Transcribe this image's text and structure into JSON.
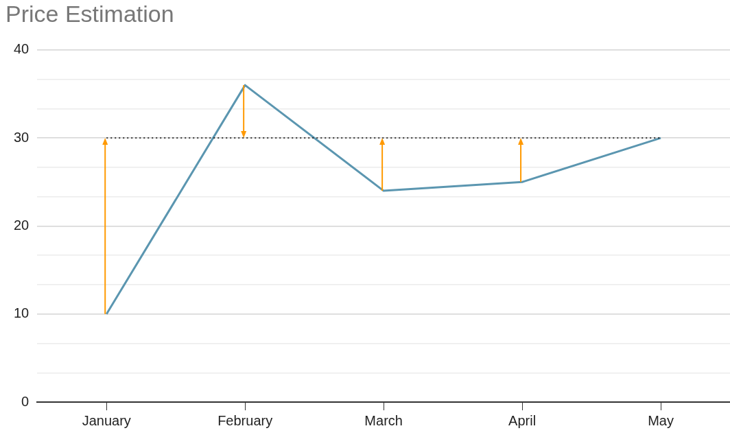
{
  "chart_data": {
    "type": "line",
    "title": "Price Estimation",
    "categories": [
      "January",
      "February",
      "March",
      "April",
      "May"
    ],
    "series": [
      {
        "color": "#5b96b0",
        "values": [
          10,
          36,
          24,
          25,
          30
        ]
      }
    ],
    "ylim": [
      0,
      40
    ],
    "yticks": [
      0,
      {
        "value": 3.33,
        "label": null
      },
      {
        "value": 6.67,
        "label": null
      },
      10,
      {
        "value": 13.33,
        "label": null
      },
      {
        "value": 16.67,
        "label": null
      },
      20,
      {
        "value": 23.33,
        "label": null
      },
      {
        "value": 26.67,
        "label": null
      },
      30,
      {
        "value": 33.33,
        "label": null
      },
      {
        "value": 36.67,
        "label": null
      },
      40
    ],
    "grid": "y",
    "legend": false,
    "marker": "none",
    "line_style": "solid",
    "ref_lines": [
      {
        "axis": "y",
        "value": 30,
        "line_style": "dotted",
        "color": "#000000"
      }
    ]
  }
}
